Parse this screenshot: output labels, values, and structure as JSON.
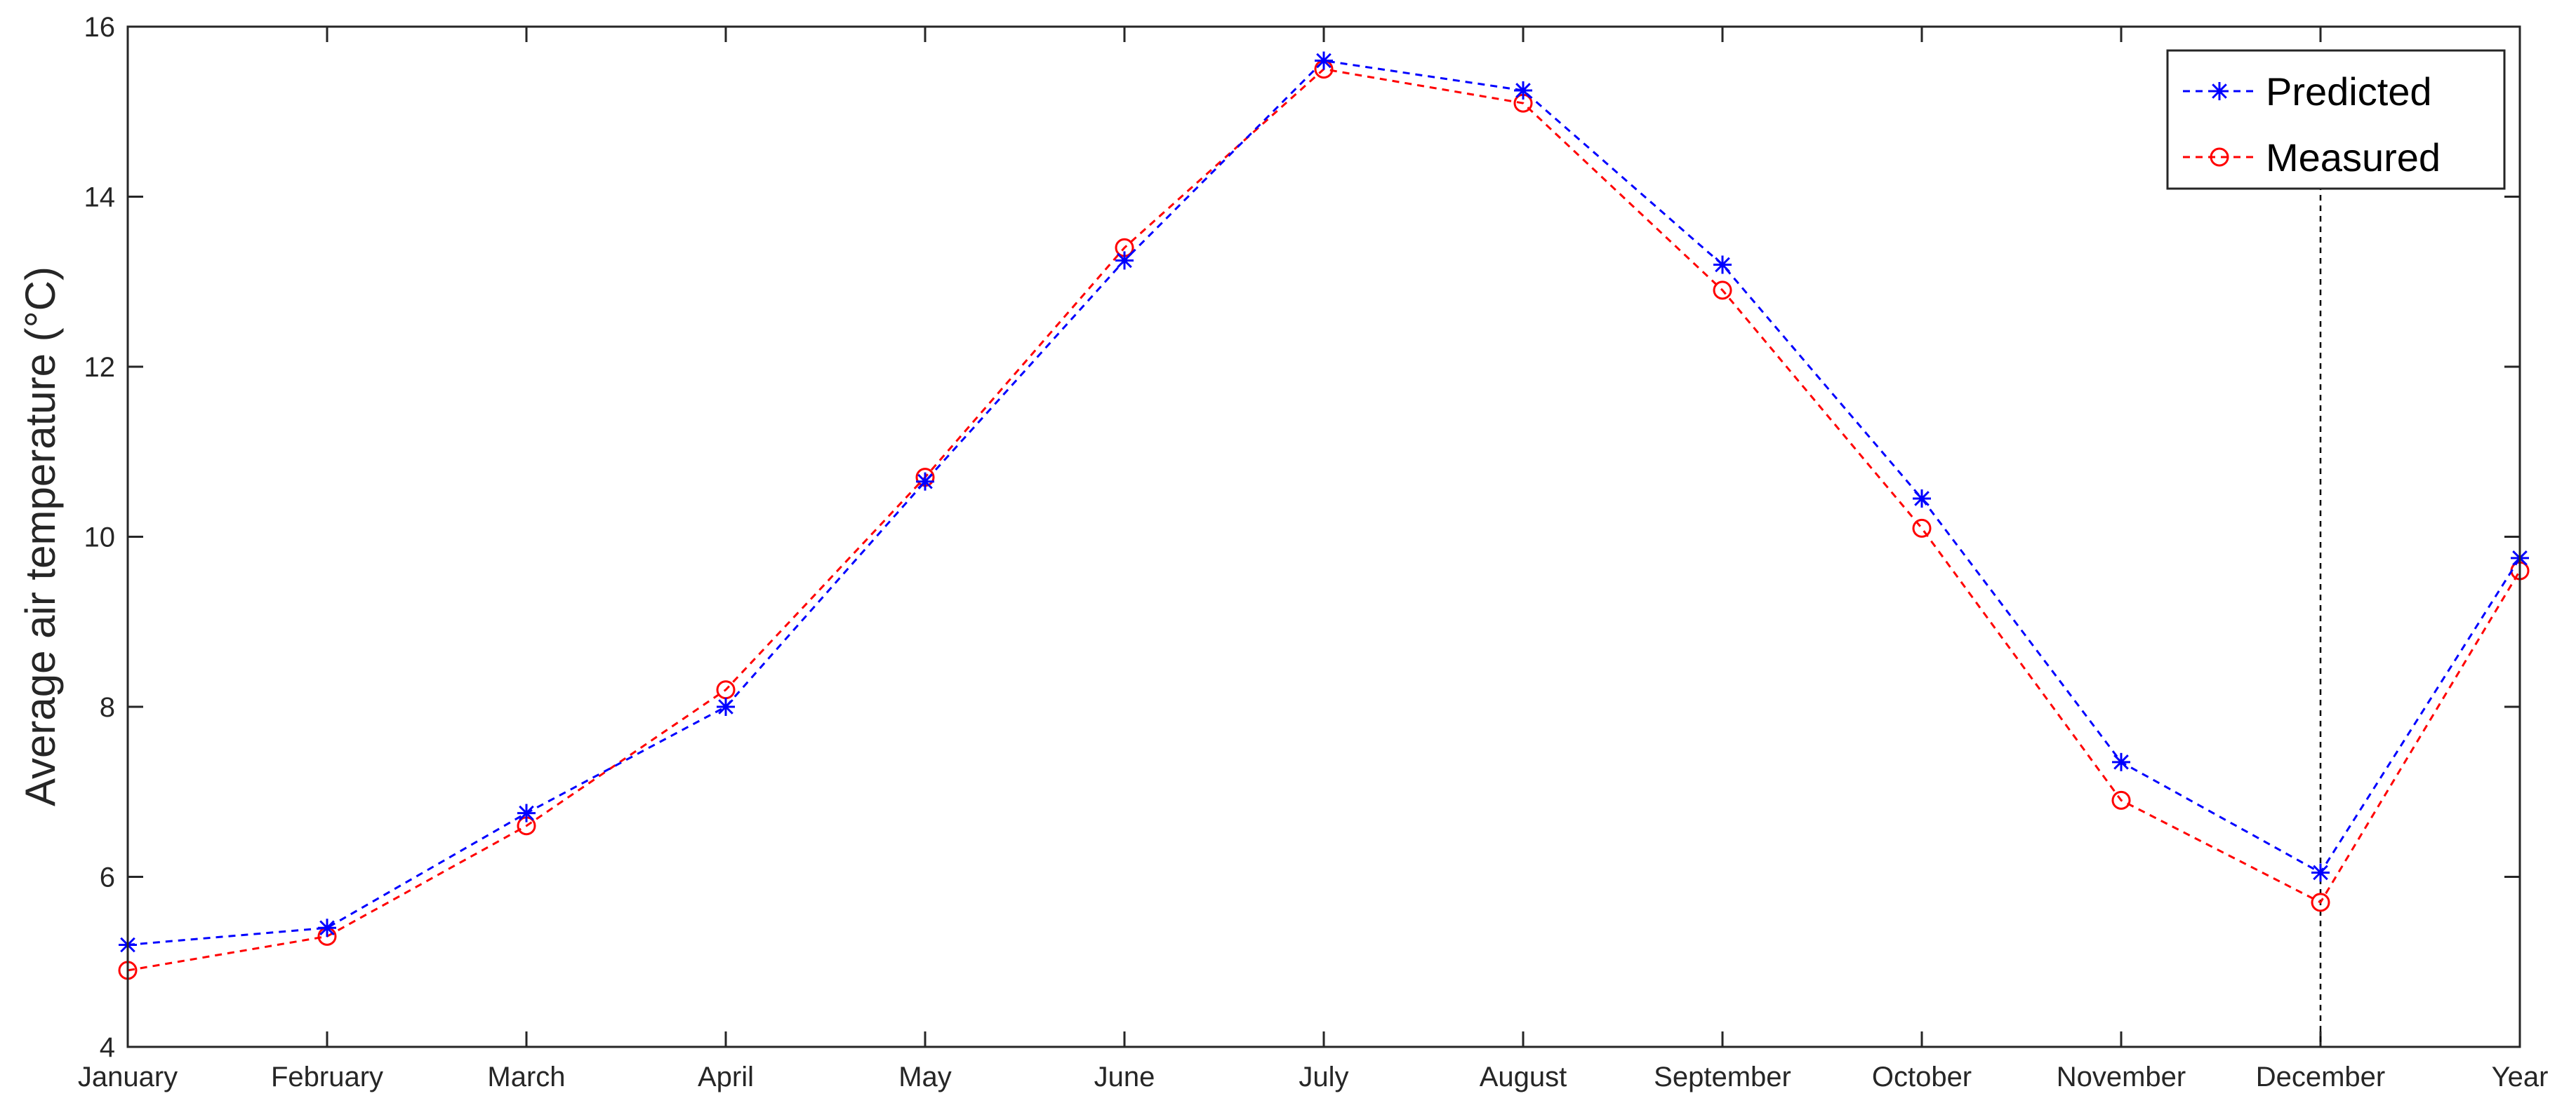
{
  "colors": {
    "predicted": "#0000ff",
    "measured": "#ff0000",
    "axis": "#262626",
    "december_marker": "#000000"
  },
  "chart_data": {
    "type": "line",
    "xlabel": "",
    "ylabel": "Average air temperature (°C)",
    "categories": [
      "January",
      "February",
      "March",
      "April",
      "May",
      "June",
      "July",
      "August",
      "September",
      "October",
      "November",
      "December",
      "Year"
    ],
    "ylim": [
      4,
      16
    ],
    "yticks": [
      4,
      6,
      8,
      10,
      12,
      14,
      16
    ],
    "grid": false,
    "legend_position": "top-right",
    "vertical_marker_at": "December",
    "series": [
      {
        "name": "Predicted",
        "marker": "asterisk",
        "line_style": "dashed",
        "color": "#0000ff",
        "values": [
          5.2,
          5.4,
          6.75,
          8.0,
          10.65,
          13.25,
          15.6,
          15.25,
          13.2,
          10.45,
          7.35,
          6.05,
          9.75
        ]
      },
      {
        "name": "Measured",
        "marker": "circle",
        "line_style": "dashed",
        "color": "#ff0000",
        "values": [
          4.9,
          5.3,
          6.6,
          8.2,
          10.7,
          13.4,
          15.5,
          15.1,
          12.9,
          10.1,
          6.9,
          5.7,
          9.6
        ]
      }
    ]
  }
}
